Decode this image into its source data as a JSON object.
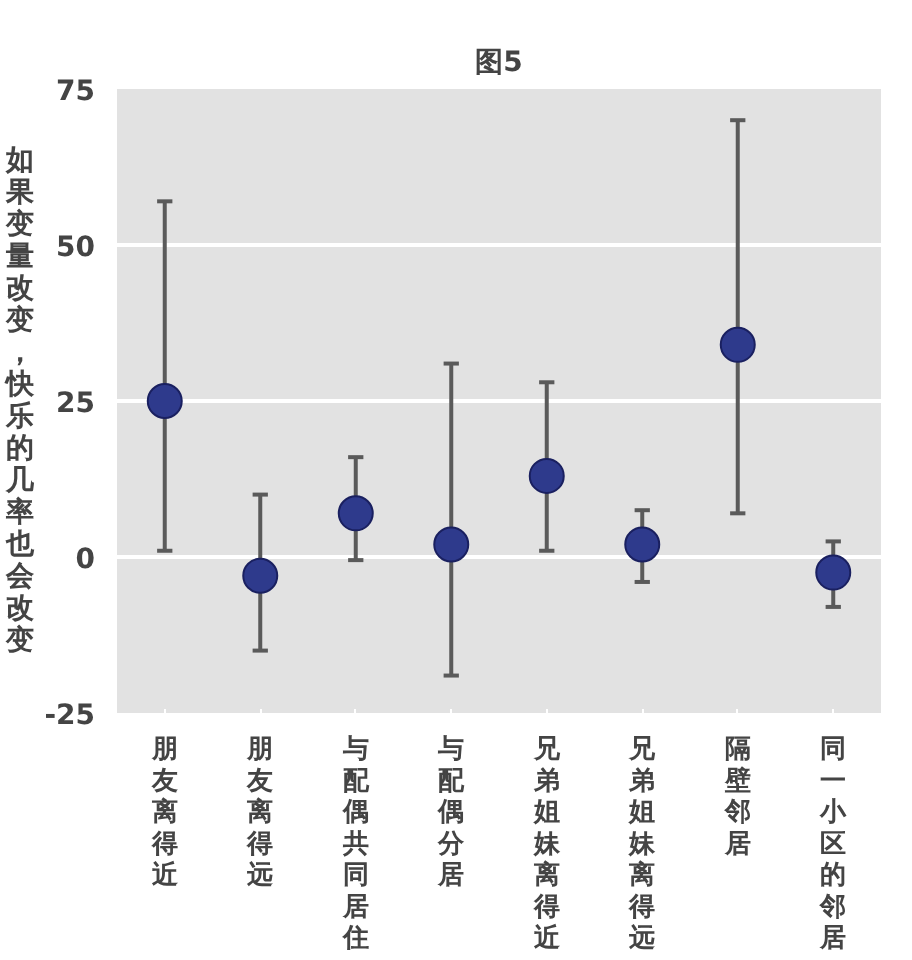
{
  "chart_data": {
    "type": "scatter",
    "title": "图5",
    "ylabel": "如果变量改变，快乐的几率也会改变",
    "categories": [
      "朋友离得近",
      "朋友离得远",
      "与配偶共同居住",
      "与配偶分居",
      "兄弟姐妹离得近",
      "兄弟姐妹离得远",
      "隔壁邻居",
      "同一小区的邻居"
    ],
    "values": [
      25,
      -3,
      7,
      2,
      13,
      2,
      34,
      -2.5
    ],
    "errors": [
      [
        1,
        57
      ],
      [
        -15,
        10
      ],
      [
        -0.5,
        16
      ],
      [
        -19,
        31
      ],
      [
        1,
        28
      ],
      [
        -4,
        7.5
      ],
      [
        7,
        70
      ],
      [
        -8,
        2.5
      ]
    ],
    "color": "#2e3a8c",
    "marker": "circle",
    "grid": "y",
    "ylim": [
      -25,
      75
    ],
    "yticks": [
      -25,
      0,
      25,
      50,
      75
    ]
  }
}
